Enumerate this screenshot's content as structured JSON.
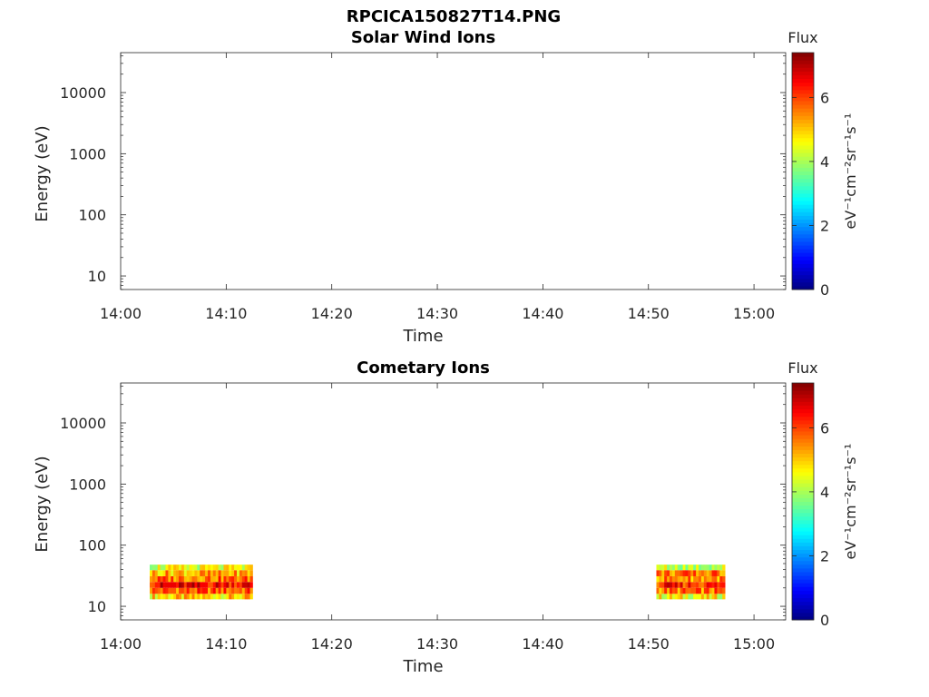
{
  "figure": {
    "title": "RPCICA150827T14.PNG"
  },
  "colors": {
    "axis": "#262626",
    "background": "#ffffff"
  },
  "chart_data": [
    {
      "type": "heatmap",
      "title": "Solar Wind Ions",
      "xlabel": "Time",
      "ylabel": "Energy (eV)",
      "y_scale": "log",
      "xlim": [
        "14:00",
        "15:03"
      ],
      "ylim": [
        6,
        45000
      ],
      "x_ticks": [
        "14:00",
        "14:10",
        "14:20",
        "14:30",
        "14:40",
        "14:50",
        "15:00"
      ],
      "y_ticks": [
        10,
        100,
        1000,
        10000
      ],
      "y_tick_labels": [
        "10",
        "100",
        "1000",
        "10000"
      ],
      "colorbar": {
        "title": "Flux",
        "label": "eV⁻¹cm⁻²sr⁻¹s⁻¹",
        "range": [
          0,
          7.4
        ],
        "ticks": [
          0,
          2,
          4,
          6
        ],
        "tick_labels": [
          "0",
          "2",
          "4",
          "6"
        ],
        "colormap": "jet"
      },
      "blocks": []
    },
    {
      "type": "heatmap",
      "title": "Cometary Ions",
      "xlabel": "Time",
      "ylabel": "Energy (eV)",
      "y_scale": "log",
      "xlim": [
        "14:00",
        "15:03"
      ],
      "ylim": [
        6,
        45000
      ],
      "x_ticks": [
        "14:00",
        "14:10",
        "14:20",
        "14:30",
        "14:40",
        "14:50",
        "15:00"
      ],
      "y_ticks": [
        10,
        100,
        1000,
        10000
      ],
      "y_tick_labels": [
        "10",
        "100",
        "1000",
        "10000"
      ],
      "colorbar": {
        "title": "Flux",
        "label": "eV⁻¹cm⁻²sr⁻¹s⁻¹",
        "range": [
          0,
          7.4
        ],
        "ticks": [
          0,
          2,
          4,
          6
        ],
        "tick_labels": [
          "0",
          "2",
          "4",
          "6"
        ],
        "colormap": "jet"
      },
      "blocks": [
        {
          "t_start": "14:02:45",
          "t_end": "14:12:30",
          "bands": [
            {
              "e_low": 13,
              "e_high": 16,
              "flux": 4.9
            },
            {
              "e_low": 16,
              "e_high": 20,
              "flux": 5.8
            },
            {
              "e_low": 20,
              "e_high": 25,
              "flux": 6.5
            },
            {
              "e_low": 25,
              "e_high": 31,
              "flux": 5.7
            },
            {
              "e_low": 31,
              "e_high": 39,
              "flux": 5.2
            },
            {
              "e_low": 39,
              "e_high": 48,
              "flux": 4.4
            }
          ]
        },
        {
          "t_start": "14:50:45",
          "t_end": "14:57:15",
          "bands": [
            {
              "e_low": 13,
              "e_high": 16,
              "flux": 4.6
            },
            {
              "e_low": 16,
              "e_high": 20,
              "flux": 5.6
            },
            {
              "e_low": 20,
              "e_high": 25,
              "flux": 6.2
            },
            {
              "e_low": 25,
              "e_high": 31,
              "flux": 5.5
            },
            {
              "e_low": 31,
              "e_high": 39,
              "flux": 5.6
            },
            {
              "e_low": 39,
              "e_high": 48,
              "flux": 4.2
            }
          ]
        }
      ]
    }
  ]
}
